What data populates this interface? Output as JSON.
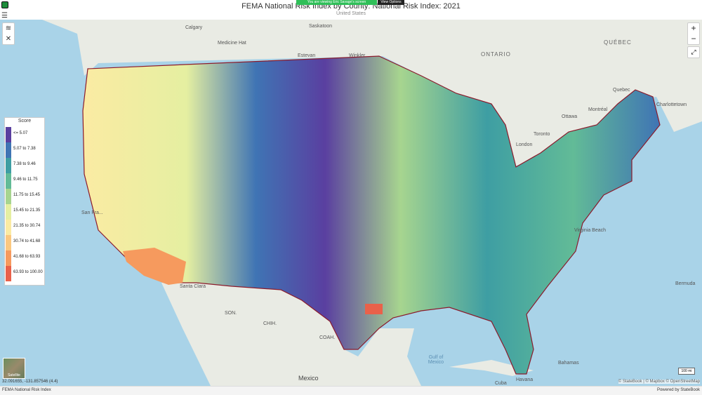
{
  "header": {
    "title": "FEMA National Risk Index by County: National Risk Index: 2021",
    "subtitle": "United States",
    "menu_icon": "hamburger-icon",
    "share_banner": "You are viewing Eric Savage's screen",
    "view_options": "View Options"
  },
  "map": {
    "controls": {
      "zoom_in": "+",
      "zoom_out": "−"
    },
    "legend": {
      "title": "Score",
      "items": [
        {
          "label": "<= 5.07",
          "color": "#5a3fa0"
        },
        {
          "label": "5.07 to 7.38",
          "color": "#3f74b4"
        },
        {
          "label": "7.38 to 9.46",
          "color": "#3e9ea3"
        },
        {
          "label": "9.46 to 11.75",
          "color": "#62bb97"
        },
        {
          "label": "11.75 to 15.45",
          "color": "#a7d58f"
        },
        {
          "label": "15.45 to 21.35",
          "color": "#e5efa1"
        },
        {
          "label": "21.35 to 30.74",
          "color": "#fbeba3"
        },
        {
          "label": "30.74 to 41.68",
          "color": "#fbc880"
        },
        {
          "label": "41.68 to 63.93",
          "color": "#f69a5e"
        },
        {
          "label": "63.93 to 100.00",
          "color": "#e9614a"
        }
      ]
    },
    "places": {
      "calgary": "Calgary",
      "saskatoon": "Saskatoon",
      "medicine_hat": "Medicine Hat",
      "estevan": "Estevan",
      "winkler": "Winkler",
      "ontario": "ONTARIO",
      "quebec": "QUÉBEC",
      "quebec_city": "Quebec",
      "ottawa": "Ottawa",
      "montreal": "Montréal",
      "toronto": "Toronto",
      "london": "London",
      "charlottetown": "Charlottetown",
      "san_francisco": "San Fra...",
      "santa_clara": "Santa Clara",
      "son": "SON.",
      "chih": "CHIH.",
      "coah": "COAH.",
      "virginia_beach": "Virginia Beach",
      "bermuda": "Bermuda",
      "gulf_of_mexico": "Gulf of Mexico",
      "mexico": "Mexico",
      "bahamas": "Bahamas",
      "havana": "Havana",
      "cuba": "Cuba"
    },
    "satellite_label": "Satellite",
    "coordinates": "32.091655, -131.857546  (4.4)",
    "scale_label": "100 mi",
    "attribution": "© StateBook | © Mapbox © OpenStreetMap"
  },
  "footer": {
    "left": "FEMA National Risk Index",
    "right": "Powered by StateBook"
  }
}
